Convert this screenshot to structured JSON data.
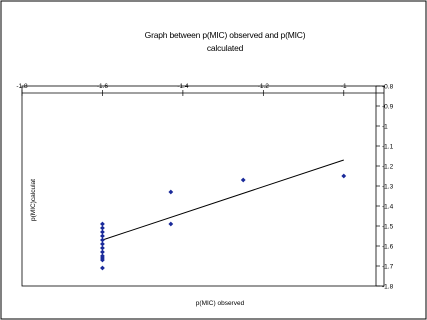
{
  "chart_data": {
    "type": "scatter",
    "title": "Graph between p(MIC) observed and p(MIC) calculated",
    "title_lines": [
      "Graph between p(MIC) observed and p(MIC)",
      "calculated"
    ],
    "xlabel": "p(MIC) observed",
    "ylabel": "p(MIC)calculat",
    "xlim": [
      -1.8,
      -0.9
    ],
    "ylim": [
      -1.8,
      -0.8
    ],
    "x_ticks": [
      -1.8,
      -1.6,
      -1.4,
      -1.2,
      -1
    ],
    "x_tick_labels": [
      "-1.8",
      "-1.6",
      "-1.4",
      "-1.2",
      "-1"
    ],
    "y_ticks": [
      -0.8,
      -0.9,
      -1,
      -1.1,
      -1.2,
      -1.3,
      -1.4,
      -1.5,
      -1.6,
      -1.7,
      -1.8
    ],
    "y_tick_labels": [
      "-0.8",
      "-0.9",
      "-1",
      "-1.1",
      "-1.2",
      "-1.3",
      "-1.4",
      "-1.5",
      "-1.6",
      "-1.7",
      "-1.8"
    ],
    "x_axis_position": "top",
    "y_axis_position": "right",
    "grid": false,
    "legend": "none",
    "marker_color": "#1a2a9a",
    "line_color": "#000000",
    "points": [
      {
        "x": -1.6,
        "y": -1.49
      },
      {
        "x": -1.6,
        "y": -1.51
      },
      {
        "x": -1.6,
        "y": -1.53
      },
      {
        "x": -1.6,
        "y": -1.55
      },
      {
        "x": -1.6,
        "y": -1.57
      },
      {
        "x": -1.6,
        "y": -1.59
      },
      {
        "x": -1.6,
        "y": -1.61
      },
      {
        "x": -1.6,
        "y": -1.63
      },
      {
        "x": -1.6,
        "y": -1.65
      },
      {
        "x": -1.6,
        "y": -1.66
      },
      {
        "x": -1.6,
        "y": -1.67
      },
      {
        "x": -1.6,
        "y": -1.71
      },
      {
        "x": -1.43,
        "y": -1.33
      },
      {
        "x": -1.43,
        "y": -1.49
      },
      {
        "x": -1.25,
        "y": -1.27
      },
      {
        "x": -1.0,
        "y": -1.25
      }
    ],
    "trendline": {
      "x": [
        -1.6,
        -1.0
      ],
      "y": [
        -1.57,
        -1.17
      ]
    }
  }
}
